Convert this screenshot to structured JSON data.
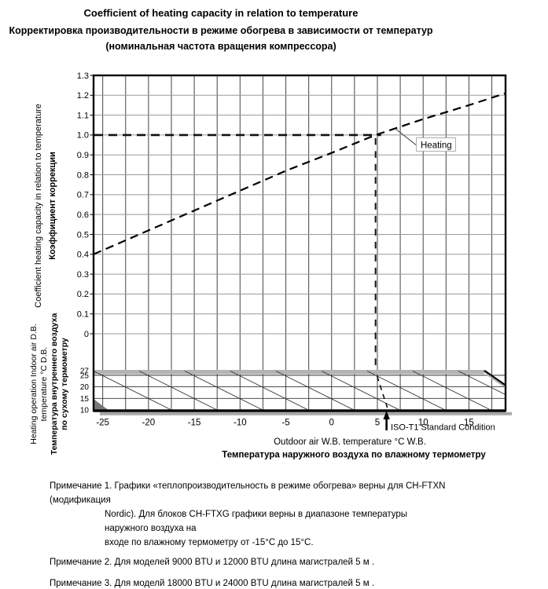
{
  "title": {
    "line1": "Coefficient of heating capacity in relation to temperature",
    "line2": "Корректировка производительности в режиме обогрева в зависимости от температур",
    "line3": "(номинальная частота вращения компрессора)"
  },
  "chart_data": {
    "type": "line",
    "title": "Coefficient of heating capacity in relation to temperature",
    "xlabel_en": "Outdoor air W.B. temperature °C W.B.",
    "xlabel_ru": "Температура наружного воздуха по влажному термометру",
    "ylabel_en": "Coefficient heating capacity in relation to temperature",
    "ylabel_ru": "Коэффициент коррекции",
    "xlim": [
      -26,
      19
    ],
    "ylim": [
      0,
      1.3
    ],
    "grid": true,
    "x_tick_labels": [
      "-25",
      "-20",
      "-15",
      "-10",
      "-5",
      "0",
      "5",
      "10",
      "15"
    ],
    "y_tick_labels": [
      "1.3",
      "1.2",
      "1.1",
      "1.0",
      "0.9",
      "0.8",
      "0.7",
      "0.6",
      "0.5",
      "0.4",
      "0.3",
      "0.2",
      "0.1",
      "0"
    ],
    "series": [
      {
        "name": "Heating",
        "style": "dashed",
        "x": [
          -26,
          -20,
          -15,
          -10,
          -5,
          0,
          4.8,
          10,
          15,
          19
        ],
        "y": [
          0.4,
          0.52,
          0.62,
          0.72,
          0.82,
          0.91,
          1.0,
          1.08,
          1.15,
          1.21
        ]
      }
    ],
    "reference": {
      "horizontal_y": 1.0,
      "vertical_x": 4.8
    },
    "iso_t1": {
      "x": 6,
      "label": "ISO-T1 Standard Condition"
    },
    "curve_label": "Heating",
    "band": {
      "y_tick_labels": [
        "27",
        "25",
        "20",
        "15",
        "10"
      ],
      "label_lines": [
        "Heating operation Indoor air D.B.",
        "temperature °C D.B.",
        "Температура внутреннего воздуха",
        "по сухому термометру"
      ]
    }
  },
  "notes": {
    "note1_line1": "Примечание  1. Графики «теплопроизводительность в режиме обогрева» верны для CH-FTXN (модификация",
    "note1_line2": "Nordic). Для блоков CH-FTXG графики верны в диапазоне температуры наружного воздуха на",
    "note1_line3": "входе по влажному термометру от -15°C до 15°C.",
    "note2": "Примечание 2. Для моделей 9000 BTU и 12000 BTU длина магистралей  5 м .",
    "note3": "Примечание 3. Для моделй 18000 BTU и  24000 BTU длина магистралей  5 м ."
  }
}
